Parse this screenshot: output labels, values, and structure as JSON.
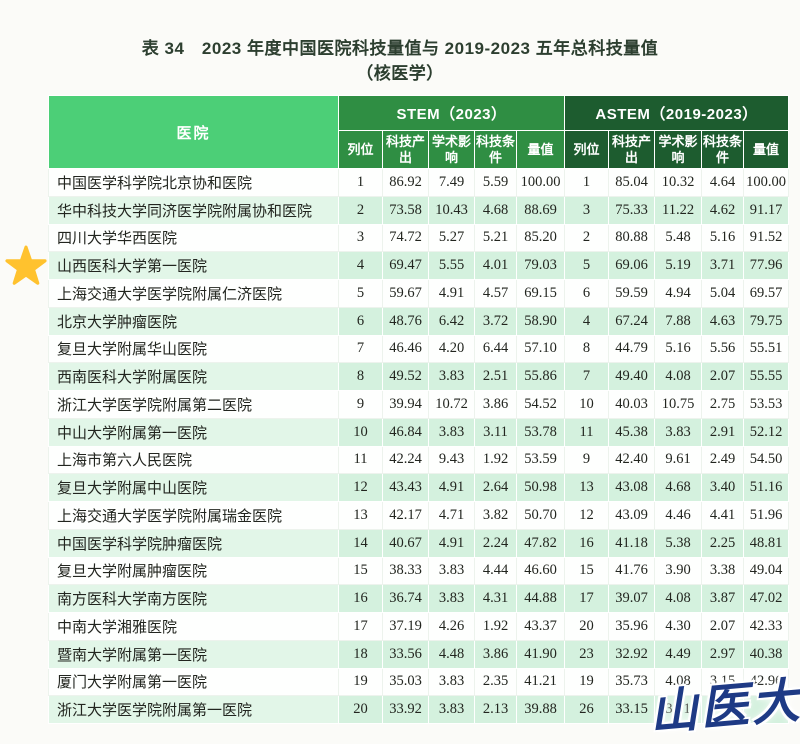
{
  "title": {
    "line1": "表 34　2023 年度中国医院科技量值与 2019-2023 五年总科技量值",
    "line2": "（核医学）"
  },
  "watermark": "山医大",
  "colors": {
    "hospital_header_bg": "#4ccf77",
    "stem_header_bg": "#2f8e43",
    "astem_header_bg": "#1d5c2f",
    "green_row_bg": "#d4f1de",
    "green_row_name_bg": "#e2f6e8",
    "star_gold": "#ffc22e",
    "watermark_navy": "#1e3a85"
  },
  "table": {
    "hospital_header": "医院",
    "groups": [
      {
        "label": "STEM（2023）",
        "columns": [
          "列位",
          "科技产出",
          "学术影响",
          "科技条件",
          "量值"
        ]
      },
      {
        "label": "ASTEM（2019-2023）",
        "columns": [
          "列位",
          "科技产出",
          "学术影响",
          "科技条件",
          "量值"
        ]
      }
    ],
    "rows": [
      {
        "hospital": "中国医学科学院北京协和医院",
        "starred": false,
        "stem": [
          "1",
          "86.92",
          "7.49",
          "5.59",
          "100.00"
        ],
        "astem": [
          "1",
          "85.04",
          "10.32",
          "4.64",
          "100.00"
        ]
      },
      {
        "hospital": "华中科技大学同济医学院附属协和医院",
        "starred": false,
        "stem": [
          "2",
          "73.58",
          "10.43",
          "4.68",
          "88.69"
        ],
        "astem": [
          "3",
          "75.33",
          "11.22",
          "4.62",
          "91.17"
        ]
      },
      {
        "hospital": "四川大学华西医院",
        "starred": false,
        "stem": [
          "3",
          "74.72",
          "5.27",
          "5.21",
          "85.20"
        ],
        "astem": [
          "2",
          "80.88",
          "5.48",
          "5.16",
          "91.52"
        ]
      },
      {
        "hospital": "山西医科大学第一医院",
        "starred": true,
        "stem": [
          "4",
          "69.47",
          "5.55",
          "4.01",
          "79.03"
        ],
        "astem": [
          "5",
          "69.06",
          "5.19",
          "3.71",
          "77.96"
        ]
      },
      {
        "hospital": "上海交通大学医学院附属仁济医院",
        "starred": false,
        "stem": [
          "5",
          "59.67",
          "4.91",
          "4.57",
          "69.15"
        ],
        "astem": [
          "6",
          "59.59",
          "4.94",
          "5.04",
          "69.57"
        ]
      },
      {
        "hospital": "北京大学肿瘤医院",
        "starred": false,
        "stem": [
          "6",
          "48.76",
          "6.42",
          "3.72",
          "58.90"
        ],
        "astem": [
          "4",
          "67.24",
          "7.88",
          "4.63",
          "79.75"
        ]
      },
      {
        "hospital": "复旦大学附属华山医院",
        "starred": false,
        "stem": [
          "7",
          "46.46",
          "4.20",
          "6.44",
          "57.10"
        ],
        "astem": [
          "8",
          "44.79",
          "5.16",
          "5.56",
          "55.51"
        ]
      },
      {
        "hospital": "西南医科大学附属医院",
        "starred": false,
        "stem": [
          "8",
          "49.52",
          "3.83",
          "2.51",
          "55.86"
        ],
        "astem": [
          "7",
          "49.40",
          "4.08",
          "2.07",
          "55.55"
        ]
      },
      {
        "hospital": "浙江大学医学院附属第二医院",
        "starred": false,
        "stem": [
          "9",
          "39.94",
          "10.72",
          "3.86",
          "54.52"
        ],
        "astem": [
          "10",
          "40.03",
          "10.75",
          "2.75",
          "53.53"
        ]
      },
      {
        "hospital": "中山大学附属第一医院",
        "starred": false,
        "stem": [
          "10",
          "46.84",
          "3.83",
          "3.11",
          "53.78"
        ],
        "astem": [
          "11",
          "45.38",
          "3.83",
          "2.91",
          "52.12"
        ]
      },
      {
        "hospital": "上海市第六人民医院",
        "starred": false,
        "stem": [
          "11",
          "42.24",
          "9.43",
          "1.92",
          "53.59"
        ],
        "astem": [
          "9",
          "42.40",
          "9.61",
          "2.49",
          "54.50"
        ]
      },
      {
        "hospital": "复旦大学附属中山医院",
        "starred": false,
        "stem": [
          "12",
          "43.43",
          "4.91",
          "2.64",
          "50.98"
        ],
        "astem": [
          "13",
          "43.08",
          "4.68",
          "3.40",
          "51.16"
        ]
      },
      {
        "hospital": "上海交通大学医学院附属瑞金医院",
        "starred": false,
        "stem": [
          "13",
          "42.17",
          "4.71",
          "3.82",
          "50.70"
        ],
        "astem": [
          "12",
          "43.09",
          "4.46",
          "4.41",
          "51.96"
        ]
      },
      {
        "hospital": "中国医学科学院肿瘤医院",
        "starred": false,
        "stem": [
          "14",
          "40.67",
          "4.91",
          "2.24",
          "47.82"
        ],
        "astem": [
          "16",
          "41.18",
          "5.38",
          "2.25",
          "48.81"
        ]
      },
      {
        "hospital": "复旦大学附属肿瘤医院",
        "starred": false,
        "stem": [
          "15",
          "38.33",
          "3.83",
          "4.44",
          "46.60"
        ],
        "astem": [
          "15",
          "41.76",
          "3.90",
          "3.38",
          "49.04"
        ]
      },
      {
        "hospital": "南方医科大学南方医院",
        "starred": false,
        "stem": [
          "16",
          "36.74",
          "3.83",
          "4.31",
          "44.88"
        ],
        "astem": [
          "17",
          "39.07",
          "4.08",
          "3.87",
          "47.02"
        ]
      },
      {
        "hospital": "中南大学湘雅医院",
        "starred": false,
        "stem": [
          "17",
          "37.19",
          "4.26",
          "1.92",
          "43.37"
        ],
        "astem": [
          "20",
          "35.96",
          "4.30",
          "2.07",
          "42.33"
        ]
      },
      {
        "hospital": "暨南大学附属第一医院",
        "starred": false,
        "stem": [
          "18",
          "33.56",
          "4.48",
          "3.86",
          "41.90"
        ],
        "astem": [
          "23",
          "32.92",
          "4.49",
          "2.97",
          "40.38"
        ]
      },
      {
        "hospital": "厦门大学附属第一医院",
        "starred": false,
        "stem": [
          "19",
          "35.03",
          "3.83",
          "2.35",
          "41.21"
        ],
        "astem": [
          "19",
          "35.73",
          "4.08",
          "3.15",
          "42.96"
        ]
      },
      {
        "hospital": "浙江大学医学院附属第一医院",
        "starred": false,
        "stem": [
          "20",
          "33.92",
          "3.83",
          "2.13",
          "39.88"
        ],
        "astem": [
          "26",
          "33.15",
          "3.71",
          "",
          ""
        ]
      }
    ]
  }
}
